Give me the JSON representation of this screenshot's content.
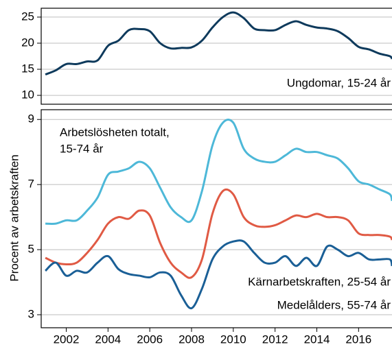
{
  "chart_data": [
    {
      "type": "line",
      "x": [
        2001,
        2001.5,
        2002,
        2002.5,
        2003,
        2003.5,
        2004,
        2004.5,
        2005,
        2005.5,
        2006,
        2006.5,
        2007,
        2007.5,
        2008,
        2008.5,
        2009,
        2009.5,
        2010,
        2010.5,
        2011,
        2011.5,
        2012,
        2012.5,
        2013,
        2013.5,
        2014,
        2014.5,
        2015,
        2015.5,
        2016,
        2016.5,
        2017,
        2017.5,
        2017.6
      ],
      "xlim": [
        2000.8,
        2017.6
      ],
      "ylim": [
        8.3,
        26.7
      ],
      "yticks": [
        10,
        15,
        20,
        25
      ],
      "grid": true,
      "series": [
        {
          "label": [
            "Ungdomar, 15-24 år"
          ],
          "color": "#0e3a5c",
          "values": [
            14.0,
            14.8,
            16.0,
            16.0,
            16.5,
            16.7,
            19.5,
            20.5,
            22.5,
            22.7,
            22.3,
            20.0,
            19.0,
            19.1,
            19.2,
            20.5,
            23.0,
            25.0,
            25.9,
            24.8,
            22.8,
            22.5,
            22.5,
            23.5,
            24.2,
            23.5,
            23.0,
            22.8,
            22.3,
            21.0,
            19.3,
            18.8,
            18.0,
            17.5,
            17.0
          ]
        }
      ]
    },
    {
      "type": "line",
      "x": [
        2001,
        2001.5,
        2002,
        2002.5,
        2003,
        2003.5,
        2004,
        2004.5,
        2005,
        2005.5,
        2006,
        2006.5,
        2007,
        2007.5,
        2008,
        2008.5,
        2009,
        2009.5,
        2010,
        2010.5,
        2011,
        2011.5,
        2012,
        2012.5,
        2013,
        2013.5,
        2014,
        2014.5,
        2015,
        2015.5,
        2016,
        2016.5,
        2017,
        2017.5,
        2017.6
      ],
      "xlim": [
        2000.8,
        2017.6
      ],
      "xticks": [
        2002,
        2004,
        2006,
        2008,
        2010,
        2012,
        2014,
        2016
      ],
      "ylim": [
        2.6,
        9.3
      ],
      "yticks": [
        3,
        5,
        7,
        9
      ],
      "grid": true,
      "y_label": "Procent av arbetskraften",
      "series": [
        {
          "label": [
            "Arbetslösheten totalt,",
            "15-74 år"
          ],
          "color": "#4db8d8",
          "values": [
            5.8,
            5.8,
            5.9,
            5.9,
            6.2,
            6.6,
            7.3,
            7.4,
            7.5,
            7.7,
            7.5,
            6.9,
            6.3,
            6.0,
            5.9,
            6.8,
            8.2,
            8.9,
            8.9,
            8.1,
            7.8,
            7.7,
            7.7,
            7.9,
            8.1,
            8.0,
            8.0,
            7.9,
            7.8,
            7.5,
            7.1,
            7.0,
            6.85,
            6.7,
            6.5
          ]
        },
        {
          "label": [
            "Kärnarbetskraften, 25-54 år"
          ],
          "color": "#e05a44",
          "values": [
            4.75,
            4.6,
            4.55,
            4.6,
            4.9,
            5.3,
            5.8,
            6.0,
            5.95,
            6.2,
            6.05,
            5.2,
            4.6,
            4.3,
            4.15,
            4.7,
            6.1,
            6.8,
            6.7,
            6.0,
            5.75,
            5.7,
            5.75,
            5.9,
            6.05,
            6.0,
            6.1,
            6.0,
            6.0,
            5.9,
            5.5,
            5.45,
            5.45,
            5.4,
            5.3
          ]
        },
        {
          "label": [
            "Medelålders, 55-74 år"
          ],
          "color": "#1a5f96",
          "values": [
            4.35,
            4.6,
            4.2,
            4.35,
            4.3,
            4.6,
            4.8,
            4.4,
            4.25,
            4.2,
            4.15,
            4.3,
            4.2,
            3.6,
            3.2,
            3.8,
            4.7,
            5.1,
            5.25,
            5.25,
            4.9,
            4.6,
            4.6,
            4.8,
            4.5,
            4.75,
            4.5,
            5.1,
            5.0,
            4.8,
            4.9,
            4.7,
            4.7,
            4.7,
            4.5
          ]
        }
      ]
    }
  ]
}
